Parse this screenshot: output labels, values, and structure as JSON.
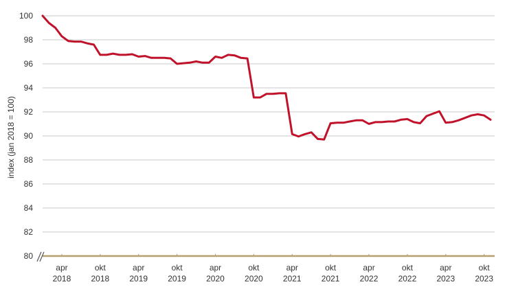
{
  "chart_data": {
    "type": "line",
    "title": "",
    "xlabel": "",
    "ylabel": "index (jan 2018 = 100)",
    "ylim": [
      80,
      100
    ],
    "yticks": [
      80,
      82,
      84,
      86,
      88,
      90,
      92,
      94,
      96,
      98,
      100
    ],
    "grid": "horizontal",
    "axis_break": "y-axis at 80",
    "line_color": "#c0132b",
    "baseline_color": "#b3a06e",
    "grid_color": "#c8c8c8",
    "x_ticks": [
      {
        "month": "apr",
        "year": "2018"
      },
      {
        "month": "okt",
        "year": "2018"
      },
      {
        "month": "apr",
        "year": "2019"
      },
      {
        "month": "okt",
        "year": "2019"
      },
      {
        "month": "apr",
        "year": "2020"
      },
      {
        "month": "okt",
        "year": "2020"
      },
      {
        "month": "apr",
        "year": "2021"
      },
      {
        "month": "okt",
        "year": "2021"
      },
      {
        "month": "apr",
        "year": "2022"
      },
      {
        "month": "okt",
        "year": "2022"
      },
      {
        "month": "apr",
        "year": "2023"
      },
      {
        "month": "okt",
        "year": "2023"
      }
    ],
    "series": [
      {
        "x": [
          "2018-01",
          "2018-02",
          "2018-03",
          "2018-04",
          "2018-05",
          "2018-06",
          "2018-07",
          "2018-08",
          "2018-09",
          "2018-10",
          "2018-11",
          "2018-12",
          "2019-01",
          "2019-02",
          "2019-03",
          "2019-04",
          "2019-05",
          "2019-06",
          "2019-07",
          "2019-08",
          "2019-09",
          "2019-10",
          "2019-11",
          "2019-12",
          "2020-01",
          "2020-02",
          "2020-03",
          "2020-04",
          "2020-05",
          "2020-06",
          "2020-07",
          "2020-08",
          "2020-09",
          "2020-10",
          "2020-11",
          "2020-12",
          "2021-01",
          "2021-02",
          "2021-03",
          "2021-04",
          "2021-05",
          "2021-06",
          "2021-07",
          "2021-08",
          "2021-09",
          "2021-10",
          "2021-11",
          "2021-12",
          "2022-01",
          "2022-02",
          "2022-03",
          "2022-04",
          "2022-05",
          "2022-06",
          "2022-07",
          "2022-08",
          "2022-09",
          "2022-10",
          "2022-11",
          "2022-12",
          "2023-01",
          "2023-02",
          "2023-03",
          "2023-04",
          "2023-05",
          "2023-06",
          "2023-07",
          "2023-08",
          "2023-09",
          "2023-10",
          "2023-11"
        ],
        "values": [
          100,
          99.4,
          99.0,
          98.3,
          97.9,
          97.85,
          97.85,
          97.7,
          97.6,
          96.75,
          96.75,
          96.85,
          96.75,
          96.75,
          96.8,
          96.6,
          96.65,
          96.5,
          96.5,
          96.5,
          96.45,
          96.0,
          96.05,
          96.1,
          96.2,
          96.1,
          96.1,
          96.6,
          96.5,
          96.75,
          96.7,
          96.5,
          96.45,
          93.2,
          93.2,
          93.5,
          93.5,
          93.55,
          93.55,
          90.15,
          89.95,
          90.15,
          90.3,
          89.75,
          89.7,
          91.05,
          91.1,
          91.1,
          91.2,
          91.3,
          91.3,
          91.0,
          91.15,
          91.15,
          91.2,
          91.2,
          91.35,
          91.4,
          91.15,
          91.05,
          91.65,
          91.85,
          92.05,
          91.1,
          91.15,
          91.3,
          91.5,
          91.7,
          91.8,
          91.7,
          91.35
        ]
      }
    ]
  }
}
